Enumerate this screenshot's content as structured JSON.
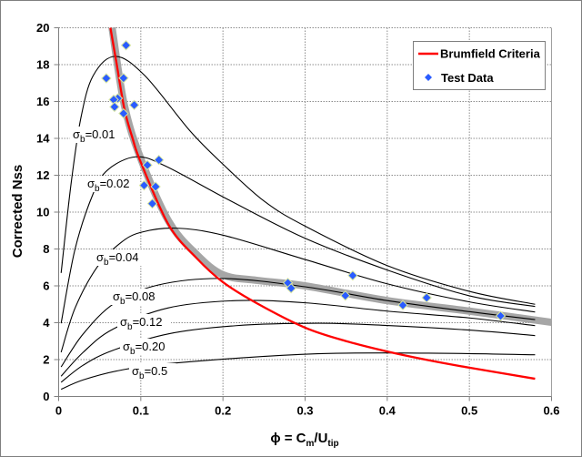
{
  "chart_data": {
    "type": "line",
    "title": "",
    "xlabel": {
      "main": "ϕ = C",
      "sub1": "m",
      "mid": "/U",
      "sub2": "tip"
    },
    "ylabel": "Corrected  Nss",
    "xlim": [
      0,
      0.6
    ],
    "ylim": [
      0,
      20
    ],
    "x_ticks": [
      "0",
      "0.1",
      "0.2",
      "0.3",
      "0.4",
      "0.5",
      "0.6"
    ],
    "y_ticks": [
      "0",
      "2",
      "4",
      "6",
      "8",
      "10",
      "12",
      "14",
      "16",
      "18",
      "20"
    ],
    "grid": true,
    "legend_position": "top-right",
    "legend": [
      {
        "label": "Brumfield Criteria",
        "kind": "line",
        "color": "#ff0000"
      },
      {
        "label": "Test Data",
        "kind": "diamond",
        "color": "#2a5cff"
      }
    ],
    "colors": {
      "brumfield": "#ff0000",
      "test_data": "#2a5cff",
      "fit_band": "#a6a6a6",
      "sigma_curves": "#000000"
    },
    "brumfield": [
      [
        0.063,
        20
      ],
      [
        0.07,
        18.2
      ],
      [
        0.08,
        15.6
      ],
      [
        0.09,
        14.0
      ],
      [
        0.1,
        12.7
      ],
      [
        0.134,
        9.3
      ],
      [
        0.168,
        7.5
      ],
      [
        0.2,
        6.2
      ],
      [
        0.241,
        5.06
      ],
      [
        0.3,
        3.73
      ],
      [
        0.35,
        3.0
      ],
      [
        0.4,
        2.44
      ],
      [
        0.45,
        1.97
      ],
      [
        0.5,
        1.56
      ],
      [
        0.58,
        0.96
      ]
    ],
    "fit_band": [
      [
        0.065,
        20
      ],
      [
        0.08,
        15.8
      ],
      [
        0.1,
        12.9
      ],
      [
        0.134,
        9.5
      ],
      [
        0.168,
        7.7
      ],
      [
        0.2,
        6.6
      ],
      [
        0.241,
        6.3
      ],
      [
        0.3,
        6.0
      ],
      [
        0.4,
        5.2
      ],
      [
        0.5,
        4.63
      ],
      [
        0.6,
        4.02
      ]
    ],
    "test_data": [
      [
        0.082,
        19.05
      ],
      [
        0.058,
        17.26
      ],
      [
        0.079,
        17.27
      ],
      [
        0.072,
        16.17
      ],
      [
        0.067,
        16.1
      ],
      [
        0.068,
        15.71
      ],
      [
        0.092,
        15.81
      ],
      [
        0.079,
        15.35
      ],
      [
        0.122,
        12.83
      ],
      [
        0.108,
        12.55
      ],
      [
        0.104,
        11.45
      ],
      [
        0.118,
        11.38
      ],
      [
        0.114,
        10.46
      ],
      [
        0.279,
        6.16
      ],
      [
        0.283,
        5.87
      ],
      [
        0.358,
        6.56
      ],
      [
        0.349,
        5.47
      ],
      [
        0.419,
        4.95
      ],
      [
        0.448,
        5.36
      ],
      [
        0.538,
        4.37
      ]
    ],
    "sigma_curves": [
      {
        "sym": "σ",
        "sub": "b",
        "value": "=0.01",
        "points": [
          [
            0.003,
            6.7
          ],
          [
            0.015,
            11.5
          ],
          [
            0.027,
            15.1
          ],
          [
            0.042,
            17.4
          ],
          [
            0.069,
            18.45
          ],
          [
            0.105,
            17.4
          ],
          [
            0.16,
            14.4
          ],
          [
            0.2,
            12.6
          ],
          [
            0.25,
            10.6
          ],
          [
            0.3,
            9.24
          ],
          [
            0.4,
            7.1
          ],
          [
            0.5,
            5.7
          ],
          [
            0.58,
            5.0
          ]
        ]
      },
      {
        "sym": "σ",
        "sub": "b",
        "value": "=0.02",
        "points": [
          [
            0.003,
            3.97
          ],
          [
            0.02,
            8.0
          ],
          [
            0.042,
            11.0
          ],
          [
            0.06,
            12.3
          ],
          [
            0.094,
            13.0
          ],
          [
            0.13,
            12.5
          ],
          [
            0.208,
            10.64
          ],
          [
            0.3,
            8.58
          ],
          [
            0.4,
            6.86
          ],
          [
            0.5,
            5.46
          ],
          [
            0.58,
            4.88
          ]
        ]
      },
      {
        "sym": "σ",
        "sub": "b",
        "value": "=0.04",
        "points": [
          [
            0.003,
            2.4
          ],
          [
            0.02,
            4.8
          ],
          [
            0.047,
            7.03
          ],
          [
            0.075,
            8.32
          ],
          [
            0.1,
            8.9
          ],
          [
            0.142,
            9.13
          ],
          [
            0.2,
            8.75
          ],
          [
            0.3,
            7.43
          ],
          [
            0.4,
            6.11
          ],
          [
            0.5,
            5.13
          ],
          [
            0.58,
            4.58
          ]
        ]
      },
      {
        "sym": "σ",
        "sub": "b",
        "value": "=0.08",
        "points": [
          [
            0.003,
            1.6
          ],
          [
            0.03,
            3.4
          ],
          [
            0.068,
            5.06
          ],
          [
            0.1215,
            6.05
          ],
          [
            0.2,
            6.4
          ],
          [
            0.3,
            5.95
          ],
          [
            0.4,
            5.2
          ],
          [
            0.5,
            4.6
          ],
          [
            0.58,
            4.17
          ]
        ]
      },
      {
        "sym": "σ",
        "sub": "b",
        "value": "=0.12",
        "points": [
          [
            0.003,
            1.1
          ],
          [
            0.03,
            2.4
          ],
          [
            0.066,
            3.65
          ],
          [
            0.133,
            4.8
          ],
          [
            0.216,
            5.2
          ],
          [
            0.3,
            5.08
          ],
          [
            0.4,
            4.63
          ],
          [
            0.5,
            4.26
          ],
          [
            0.58,
            3.84
          ]
        ]
      },
      {
        "sym": "σ",
        "sub": "b",
        "value": "=0.20",
        "points": [
          [
            0.003,
            0.77
          ],
          [
            0.03,
            1.7
          ],
          [
            0.066,
            2.5
          ],
          [
            0.134,
            3.4
          ],
          [
            0.216,
            3.84
          ],
          [
            0.316,
            3.97
          ],
          [
            0.4,
            3.85
          ],
          [
            0.5,
            3.6
          ],
          [
            0.58,
            3.3
          ]
        ]
      },
      {
        "sym": "σ",
        "sub": "b",
        "value": "=0.5",
        "points": [
          [
            0.003,
            0.39
          ],
          [
            0.03,
            0.9
          ],
          [
            0.075,
            1.42
          ],
          [
            0.138,
            1.8
          ],
          [
            0.305,
            2.3
          ],
          [
            0.45,
            2.35
          ],
          [
            0.58,
            2.26
          ]
        ]
      }
    ]
  }
}
